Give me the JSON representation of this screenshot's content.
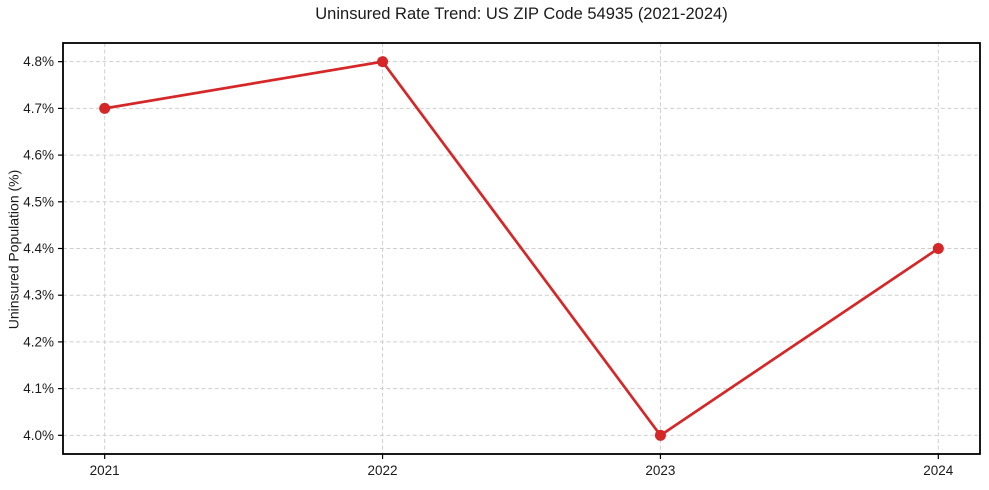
{
  "chart_data": {
    "type": "line",
    "title": "Uninsured Rate Trend: US ZIP Code 54935 (2021-2024)",
    "xlabel": "",
    "ylabel": "Uninsured Population (%)",
    "series_name": "Uninsured rate",
    "x": [
      2021,
      2022,
      2023,
      2024
    ],
    "values": [
      4.7,
      4.8,
      4.0,
      4.4
    ],
    "xlim": [
      2020.85,
      2024.15
    ],
    "ylim": [
      3.96,
      4.84
    ],
    "xticks": {
      "values": [
        2021,
        2022,
        2023,
        2024
      ],
      "labels": [
        "2021",
        "2022",
        "2023",
        "2024"
      ]
    },
    "yticks": {
      "values": [
        4.0,
        4.1,
        4.2,
        4.3,
        4.4,
        4.5,
        4.6,
        4.7,
        4.8
      ],
      "labels": [
        "4.0%",
        "4.1%",
        "4.2%",
        "4.3%",
        "4.4%",
        "4.5%",
        "4.6%",
        "4.7%",
        "4.8%"
      ]
    },
    "grid": "dashed",
    "legend": "none",
    "colors": {
      "line": "#d62728",
      "marker": "#d62728",
      "grid": "#cfcfcf",
      "axis": "#000000",
      "text": "#1a1a1a",
      "background": "#ffffff"
    }
  }
}
